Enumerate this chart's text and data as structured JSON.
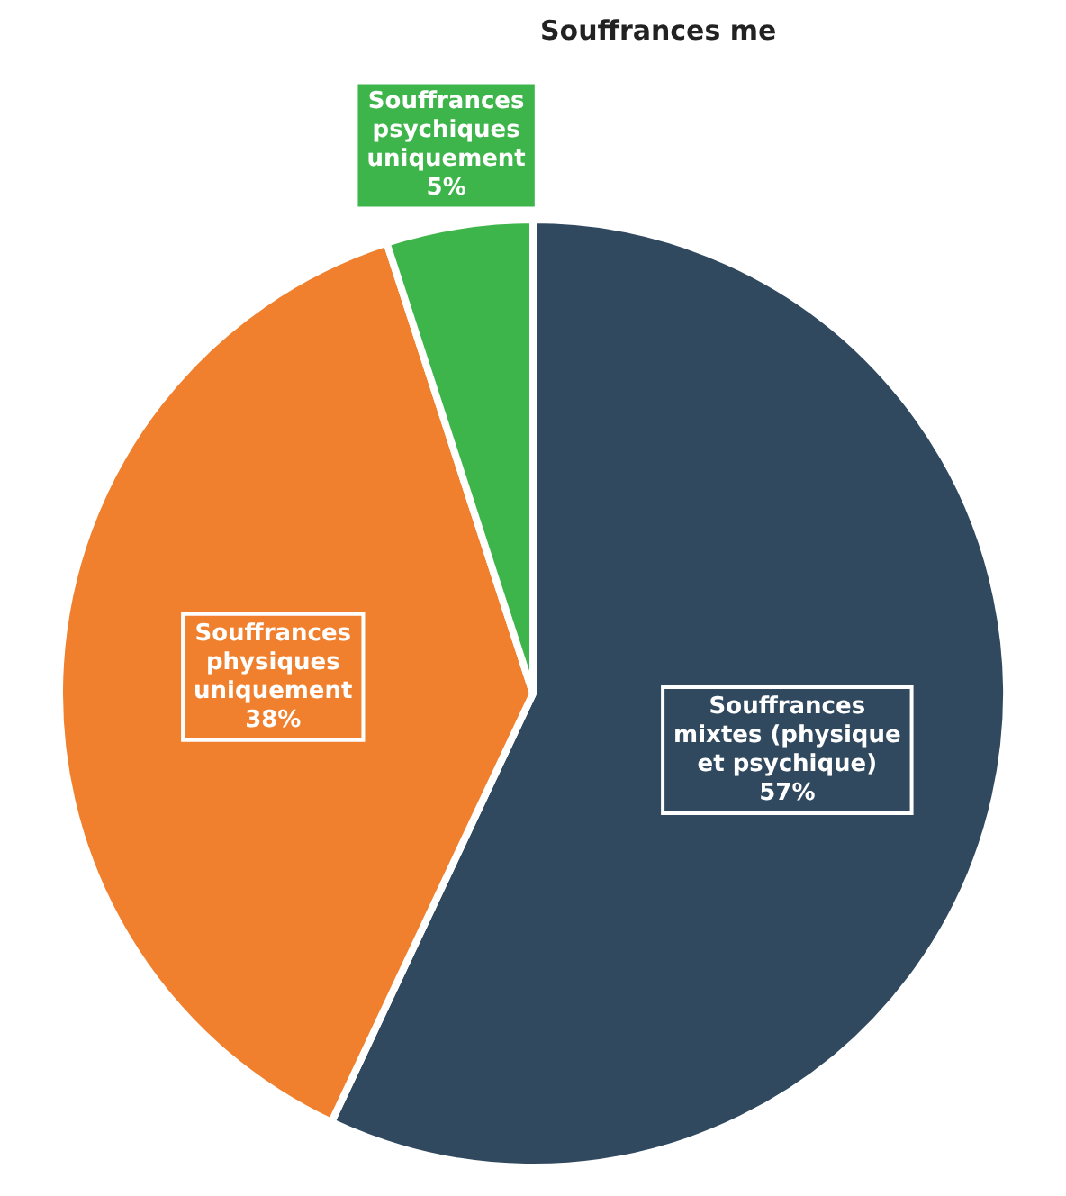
{
  "chart_data": {
    "type": "pie",
    "title": "Souffrances me",
    "categories": [
      "Souffrances mixtes (physique et psychique)",
      "Souffrances physiques uniquement",
      "Souffrances psychiques uniquement"
    ],
    "values": [
      57,
      38,
      5
    ],
    "colors": [
      "#30495f",
      "#f0802e",
      "#3db54a"
    ],
    "value_labels": [
      "57%",
      "38%",
      "5%"
    ],
    "legend": false
  }
}
